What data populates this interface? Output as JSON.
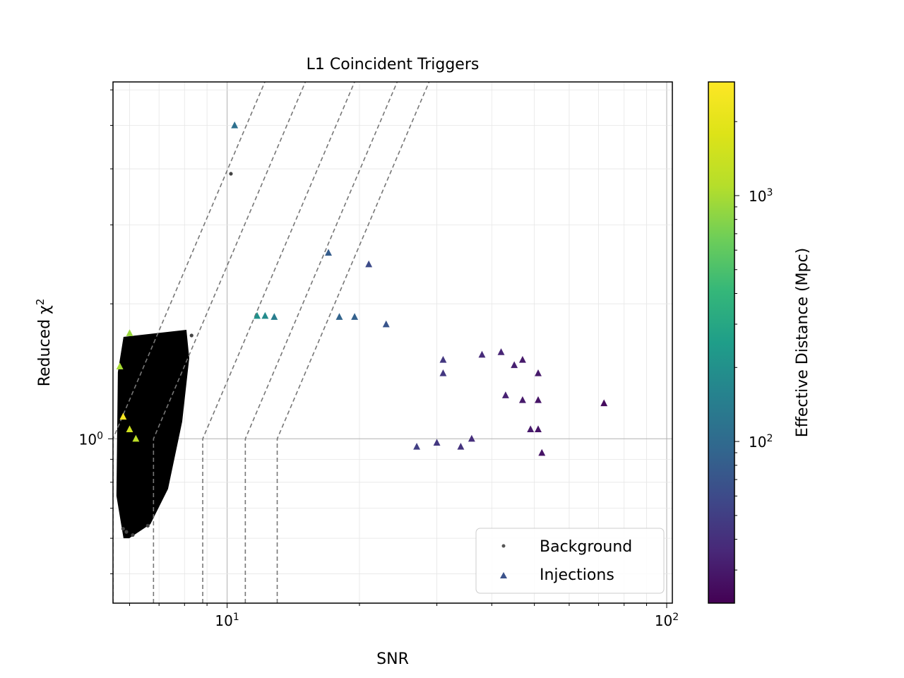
{
  "chart_data": {
    "type": "scatter",
    "title": "L1 Coincident Triggers",
    "xlabel": "SNR",
    "ylabel": "Reduced χ²",
    "x_scale": "log",
    "y_scale": "log",
    "xlim": [
      5.5,
      103
    ],
    "ylim": [
      0.43,
      6.25
    ],
    "x_tick_labels": [
      {
        "value": 10,
        "base": "10",
        "exp": "1"
      },
      {
        "value": 100,
        "base": "10",
        "exp": "2"
      }
    ],
    "y_tick_labels": [
      {
        "value": 1,
        "base": "10",
        "exp": "0"
      }
    ],
    "grid": true,
    "legend": {
      "position": "bottom-right",
      "entries": [
        {
          "label": "Background",
          "marker": "dot",
          "color": "#555555"
        },
        {
          "label": "Injections",
          "marker": "triangle",
          "color": "#3b528b"
        }
      ]
    },
    "colorbar": {
      "label": "Effective Distance (Mpc)",
      "scale": "log",
      "range": [
        22,
        2900
      ],
      "colormap": "viridis",
      "tick_labels": [
        {
          "value": 100,
          "base": "10",
          "exp": "2"
        },
        {
          "value": 1000,
          "base": "10",
          "exp": "3"
        }
      ]
    },
    "threshold_lines": [
      {
        "snr_start": 5.5
      },
      {
        "snr_start": 6.8
      },
      {
        "snr_start": 8.8
      },
      {
        "snr_start": 11.0
      },
      {
        "snr_start": 13.0
      }
    ],
    "background_region": {
      "snr_range": [
        5.6,
        8.2
      ],
      "chisq_range": [
        0.6,
        1.75
      ]
    },
    "series": [
      {
        "name": "Background",
        "points": [
          {
            "snr": 10.2,
            "chisq": 3.9
          },
          {
            "snr": 5.9,
            "chisq": 0.62
          },
          {
            "snr": 6.1,
            "chisq": 0.61
          },
          {
            "snr": 5.8,
            "chisq": 0.63
          },
          {
            "snr": 6.6,
            "chisq": 0.64
          },
          {
            "snr": 8.3,
            "chisq": 1.7
          }
        ]
      },
      {
        "name": "Injections",
        "points": [
          {
            "snr": 10.4,
            "chisq": 5.0,
            "dist": 110
          },
          {
            "snr": 17.0,
            "chisq": 2.6,
            "dist": 80
          },
          {
            "snr": 21.0,
            "chisq": 2.45,
            "dist": 60
          },
          {
            "snr": 11.7,
            "chisq": 1.88,
            "dist": 200
          },
          {
            "snr": 12.2,
            "chisq": 1.88,
            "dist": 180
          },
          {
            "snr": 12.8,
            "chisq": 1.87,
            "dist": 140
          },
          {
            "snr": 18.0,
            "chisq": 1.87,
            "dist": 90
          },
          {
            "snr": 19.5,
            "chisq": 1.87,
            "dist": 85
          },
          {
            "snr": 23.0,
            "chisq": 1.8,
            "dist": 70
          },
          {
            "snr": 72.0,
            "chisq": 1.2,
            "dist": 25
          },
          {
            "snr": 52.0,
            "chisq": 0.93,
            "dist": 28
          },
          {
            "snr": 47.0,
            "chisq": 1.5,
            "dist": 30
          },
          {
            "snr": 51.0,
            "chisq": 1.4,
            "dist": 30
          },
          {
            "snr": 45.0,
            "chisq": 1.46,
            "dist": 32
          },
          {
            "snr": 42.0,
            "chisq": 1.56,
            "dist": 35
          },
          {
            "snr": 38.0,
            "chisq": 1.54,
            "dist": 38
          },
          {
            "snr": 31.0,
            "chisq": 1.5,
            "dist": 45
          },
          {
            "snr": 31.0,
            "chisq": 1.4,
            "dist": 45
          },
          {
            "snr": 51.0,
            "chisq": 1.22,
            "dist": 28
          },
          {
            "snr": 47.0,
            "chisq": 1.22,
            "dist": 30
          },
          {
            "snr": 43.0,
            "chisq": 1.25,
            "dist": 33
          },
          {
            "snr": 49.0,
            "chisq": 1.05,
            "dist": 30
          },
          {
            "snr": 51.0,
            "chisq": 1.05,
            "dist": 28
          },
          {
            "snr": 36.0,
            "chisq": 1.0,
            "dist": 40
          },
          {
            "snr": 30.0,
            "chisq": 0.98,
            "dist": 45
          },
          {
            "snr": 27.0,
            "chisq": 0.96,
            "dist": 50
          },
          {
            "snr": 34.0,
            "chisq": 0.96,
            "dist": 42
          },
          {
            "snr": 6.0,
            "chisq": 1.72,
            "dist": 900
          },
          {
            "snr": 5.7,
            "chisq": 1.45,
            "dist": 1000
          },
          {
            "snr": 5.8,
            "chisq": 1.12,
            "dist": 2600
          },
          {
            "snr": 6.0,
            "chisq": 1.05,
            "dist": 1500
          },
          {
            "snr": 6.2,
            "chisq": 1.0,
            "dist": 1200
          }
        ]
      }
    ]
  }
}
